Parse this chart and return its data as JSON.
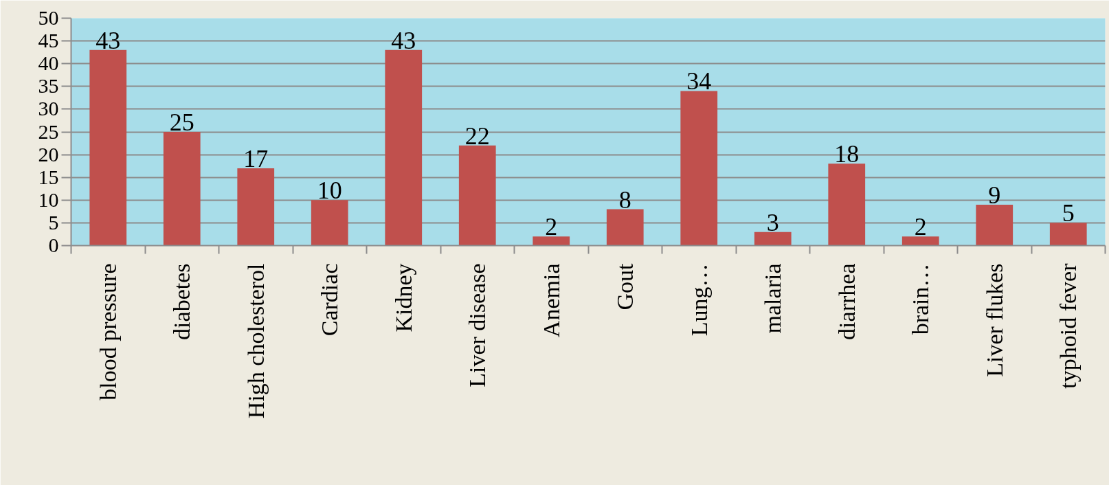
{
  "chart_data": {
    "type": "bar",
    "categories": [
      "blood pressure",
      "diabetes",
      "High cholesterol",
      "Cardiac",
      "Kidney",
      "Liver disease",
      "Anemia",
      "Gout",
      "Lung…",
      "malaria",
      "diarrhea",
      "brain…",
      "Liver flukes",
      "typhoid fever"
    ],
    "values": [
      43,
      25,
      17,
      10,
      43,
      22,
      2,
      8,
      34,
      3,
      18,
      2,
      9,
      5
    ],
    "color": "#c0504d",
    "ylim": [
      0,
      50
    ],
    "yticks": [
      0,
      5,
      10,
      15,
      20,
      25,
      30,
      35,
      40,
      45,
      50
    ],
    "grid": "y",
    "data_labels": true
  }
}
